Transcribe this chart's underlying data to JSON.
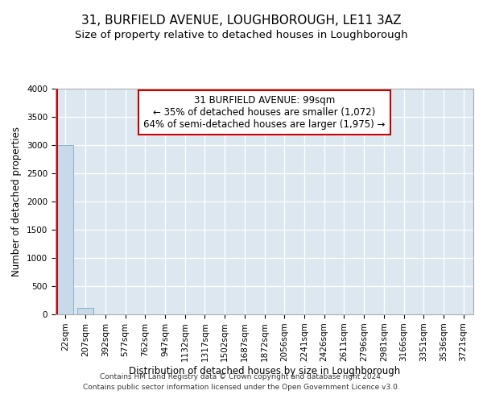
{
  "title": "31, BURFIELD AVENUE, LOUGHBOROUGH, LE11 3AZ",
  "subtitle": "Size of property relative to detached houses in Loughborough",
  "xlabel": "Distribution of detached houses by size in Loughborough",
  "ylabel": "Number of detached properties",
  "footer_line1": "Contains HM Land Registry data © Crown copyright and database right 2024.",
  "footer_line2": "Contains public sector information licensed under the Open Government Licence v3.0.",
  "categories": [
    "22sqm",
    "207sqm",
    "392sqm",
    "577sqm",
    "762sqm",
    "947sqm",
    "1132sqm",
    "1317sqm",
    "1502sqm",
    "1687sqm",
    "1872sqm",
    "2056sqm",
    "2241sqm",
    "2426sqm",
    "2611sqm",
    "2796sqm",
    "2981sqm",
    "3166sqm",
    "3351sqm",
    "3536sqm",
    "3721sqm"
  ],
  "values": [
    3000,
    115,
    0,
    0,
    0,
    0,
    0,
    0,
    0,
    0,
    0,
    0,
    0,
    0,
    0,
    0,
    0,
    0,
    0,
    0,
    0
  ],
  "bar_color": "#c8d9ea",
  "bar_edge_color": "#7aaac8",
  "ylim": [
    0,
    4000
  ],
  "yticks": [
    0,
    500,
    1000,
    1500,
    2000,
    2500,
    3000,
    3500,
    4000
  ],
  "annotation_text": "31 BURFIELD AVENUE: 99sqm\n← 35% of detached houses are smaller (1,072)\n64% of semi-detached houses are larger (1,975) →",
  "annotation_box_color": "#ffffff",
  "annotation_box_edge": "#cc0000",
  "bg_color": "#dce7f0",
  "grid_color": "#ffffff",
  "title_fontsize": 11,
  "subtitle_fontsize": 9.5,
  "axis_label_fontsize": 8.5,
  "tick_fontsize": 7.5,
  "annot_fontsize": 8.5,
  "footer_fontsize": 6.5
}
